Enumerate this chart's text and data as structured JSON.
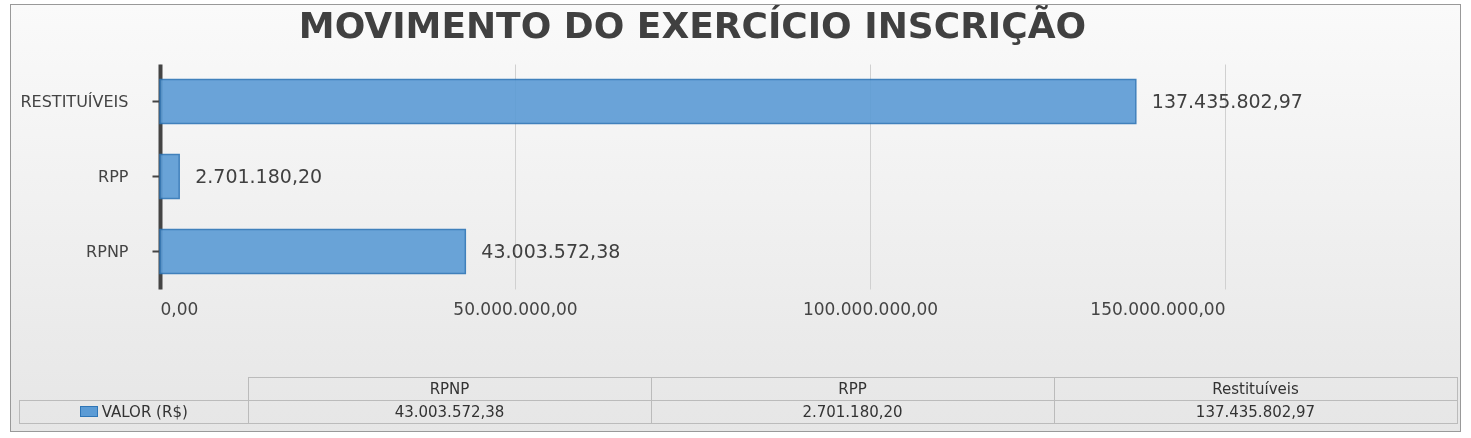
{
  "chart_data": {
    "type": "bar",
    "orientation": "horizontal",
    "title": "MOVIMENTO DO EXERCÍCIO INSCRIÇÃO",
    "categories": [
      "RESTITUÍVEIS",
      "RPP",
      "RPNP"
    ],
    "series": [
      {
        "name": "VALOR (R$)",
        "color": "#5b9bd5",
        "values": [
          137435802.97,
          2701180.2,
          43003572.38
        ],
        "value_labels": [
          "137.435.802,97",
          "2.701.180,20",
          "43.003.572,38"
        ]
      }
    ],
    "xlim": [
      0,
      150000000
    ],
    "xticks": [
      {
        "value": 0,
        "label": "0,00"
      },
      {
        "value": 50000000,
        "label": "50.000.000,00"
      },
      {
        "value": 100000000,
        "label": "100.000.000,00"
      },
      {
        "value": 150000000,
        "label": "150.000.000,00"
      }
    ],
    "grid": "x",
    "legend": "bottom",
    "annotations": [
      "RPNP",
      "RPP",
      "Restituíveis"
    ]
  }
}
